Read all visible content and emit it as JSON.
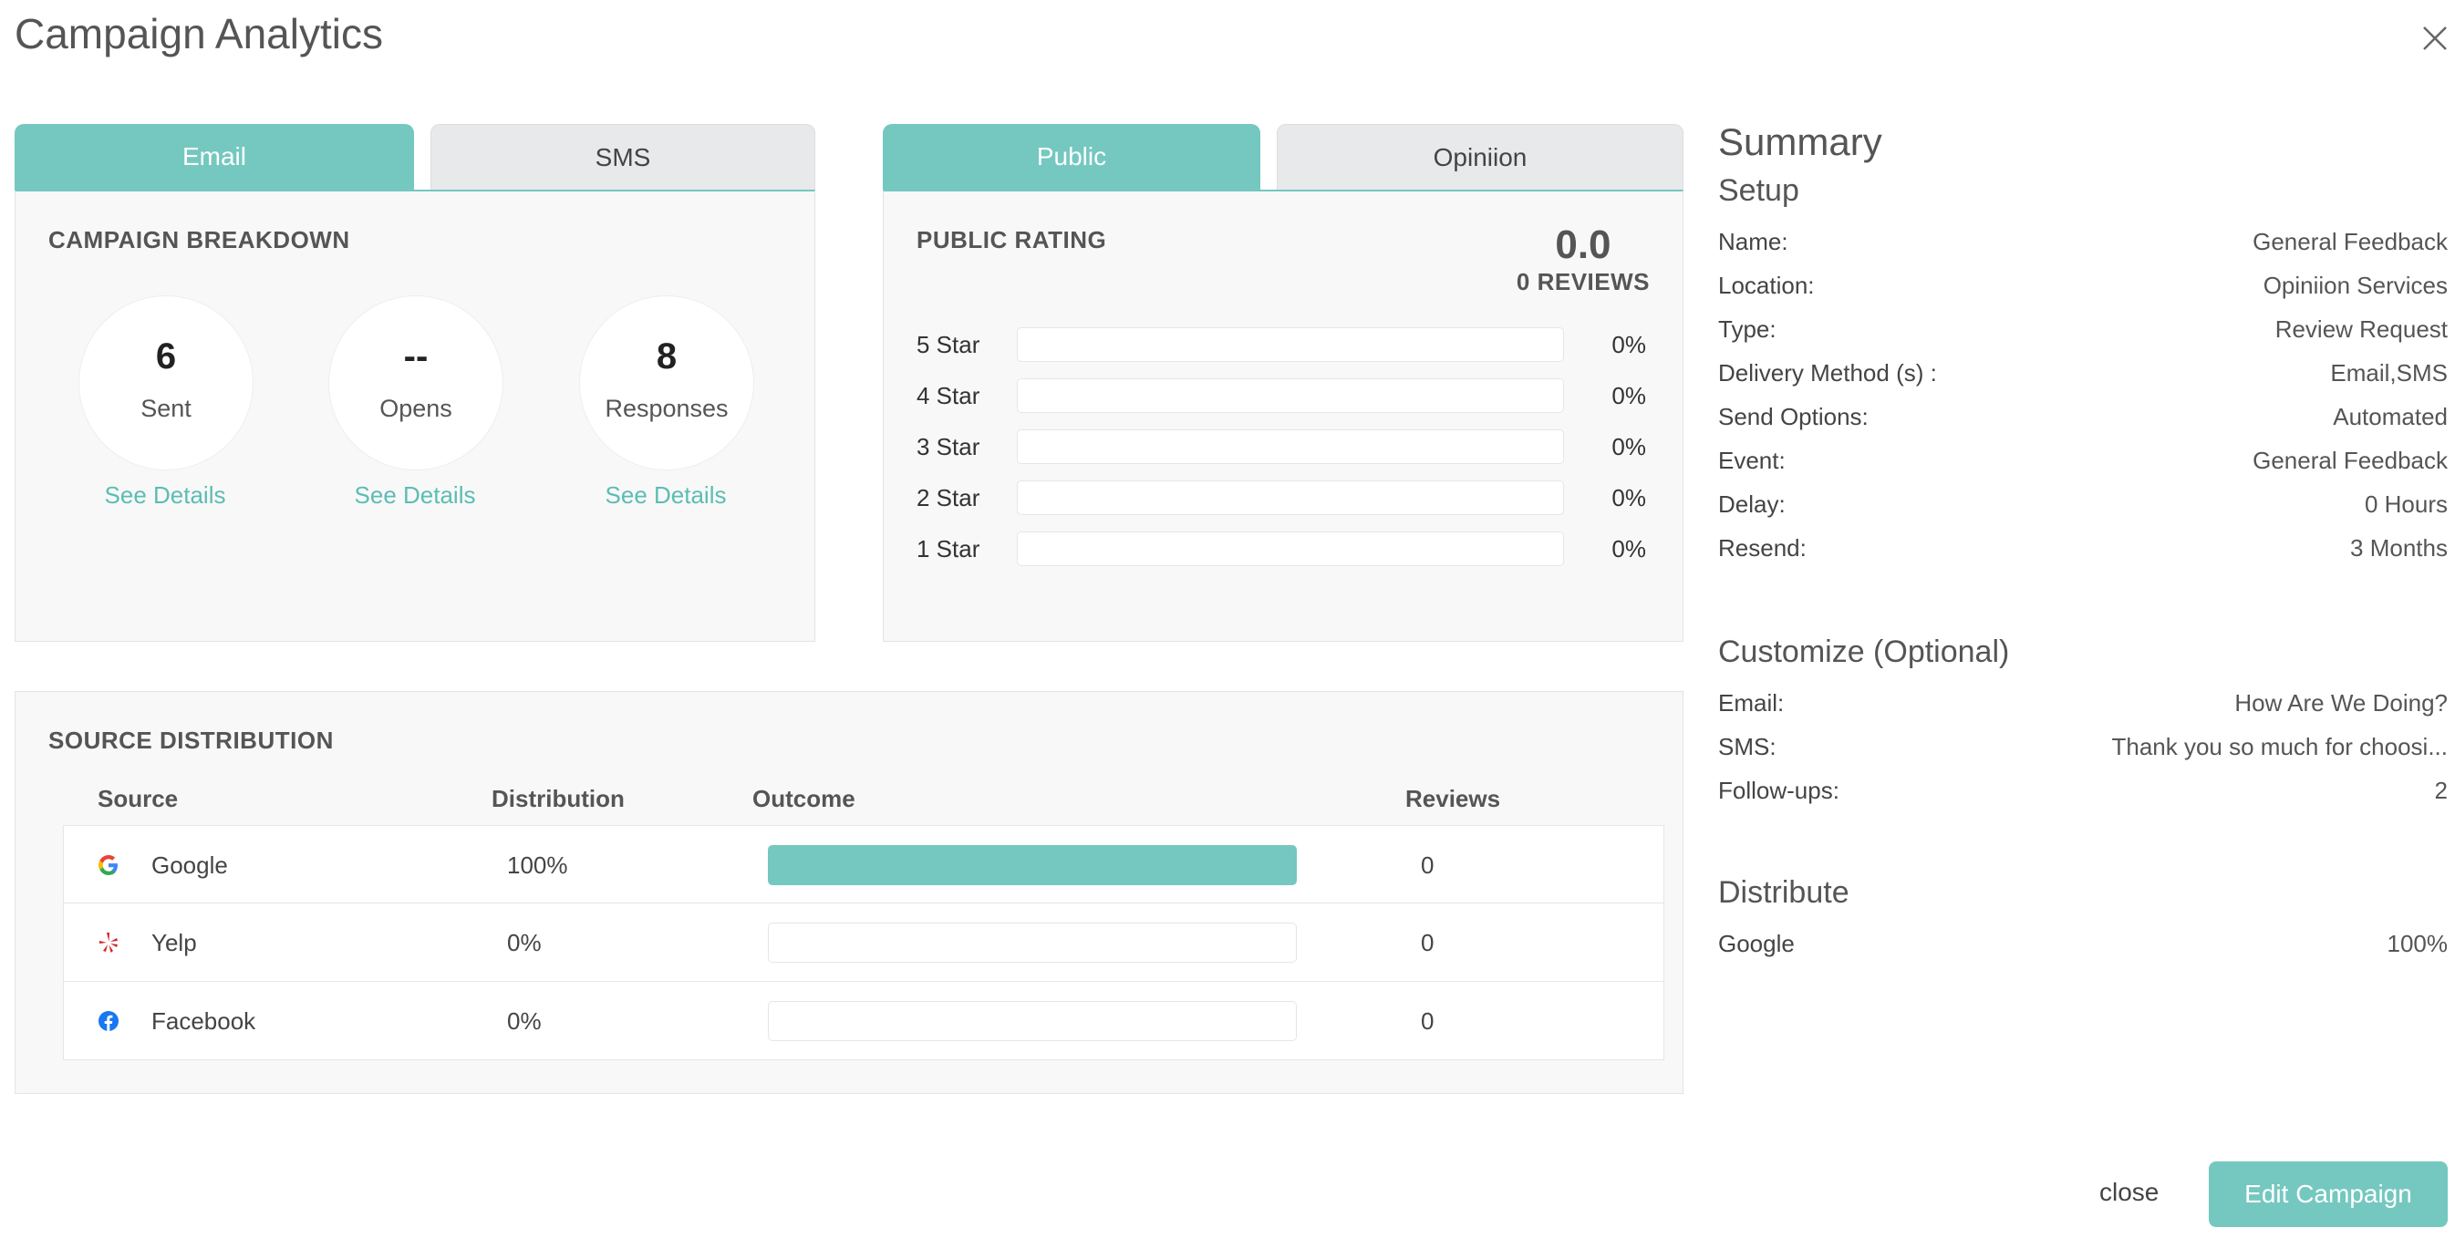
{
  "dialog": {
    "title": "Campaign Analytics"
  },
  "channel_tabs": [
    {
      "label": "Email",
      "active": true
    },
    {
      "label": "SMS",
      "active": false
    }
  ],
  "breakdown": {
    "title": "CAMPAIGN BREAKDOWN",
    "stats": [
      {
        "value": "6",
        "label": "Sent",
        "link": "See Details"
      },
      {
        "value": "--",
        "label": "Opens",
        "link": "See Details"
      },
      {
        "value": "8",
        "label": "Responses",
        "link": "See Details"
      }
    ]
  },
  "rating_tabs": [
    {
      "label": "Public",
      "active": true
    },
    {
      "label": "Opiniion",
      "active": false
    }
  ],
  "rating": {
    "title": "PUBLIC RATING",
    "score": "0.0",
    "reviews": "0 REVIEWS",
    "rows": [
      {
        "label": "5 Star",
        "pct": "0%",
        "fraction": 0
      },
      {
        "label": "4 Star",
        "pct": "0%",
        "fraction": 0
      },
      {
        "label": "3 Star",
        "pct": "0%",
        "fraction": 0
      },
      {
        "label": "2 Star",
        "pct": "0%",
        "fraction": 0
      },
      {
        "label": "1 Star",
        "pct": "0%",
        "fraction": 0
      }
    ]
  },
  "source": {
    "title": "SOURCE DISTRIBUTION",
    "headers": {
      "source": "Source",
      "distribution": "Distribution",
      "outcome": "Outcome",
      "reviews": "Reviews"
    },
    "rows": [
      {
        "name": "Google",
        "icon": "google-icon",
        "distribution": "100%",
        "outcome_fraction": 1,
        "reviews": "0"
      },
      {
        "name": "Yelp",
        "icon": "yelp-icon",
        "distribution": "0%",
        "outcome_fraction": 0,
        "reviews": "0"
      },
      {
        "name": "Facebook",
        "icon": "facebook-icon",
        "distribution": "0%",
        "outcome_fraction": 0,
        "reviews": "0"
      }
    ]
  },
  "summary": {
    "title": "Summary",
    "setup": {
      "title": "Setup",
      "rows": [
        {
          "k": "Name:",
          "v": "General Feedback"
        },
        {
          "k": "Location:",
          "v": "Opiniion Services"
        },
        {
          "k": "Type:",
          "v": "Review Request"
        },
        {
          "k": "Delivery Method (s) :",
          "v": "Email,SMS"
        },
        {
          "k": "Send Options:",
          "v": "Automated"
        },
        {
          "k": "Event:",
          "v": "General Feedback"
        },
        {
          "k": "Delay:",
          "v": "0 Hours"
        },
        {
          "k": "Resend:",
          "v": "3 Months"
        }
      ]
    },
    "customize": {
      "title": "Customize (Optional)",
      "rows": [
        {
          "k": "Email:",
          "v": "How Are We Doing?"
        },
        {
          "k": "SMS:",
          "v": "Thank you so much for choosi..."
        },
        {
          "k": "Follow-ups:",
          "v": "2"
        }
      ]
    },
    "distribute": {
      "title": "Distribute",
      "rows": [
        {
          "k": "Google",
          "v": "100%"
        }
      ]
    }
  },
  "footer": {
    "close": "close",
    "edit": "Edit Campaign"
  },
  "colors": {
    "accent": "#74c8c0",
    "accent_text": "#5bbdb3",
    "tab_inactive": "#e8e9eb"
  }
}
